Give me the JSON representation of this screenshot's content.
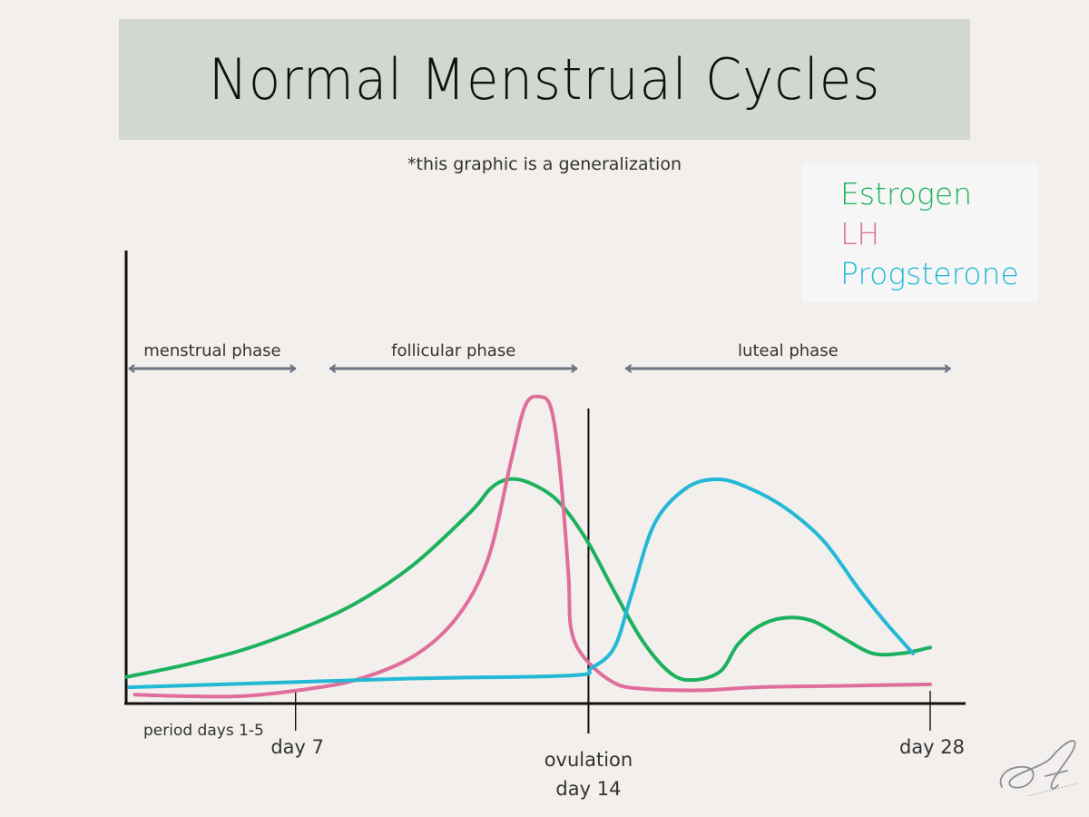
{
  "title": "Normal Menstrual Cycles",
  "subtitle": "*this graphic is a generalization",
  "colors": {
    "estrogen": "#1db15e",
    "lh": "#e06e9c",
    "progesterone": "#22b8d6",
    "arrows": "#6b7480",
    "banner": "#d2d8d1",
    "background": "#f2efec"
  },
  "legend": [
    {
      "label": "Estrogen",
      "color": "#1db15e"
    },
    {
      "label": "LH",
      "color": "#e06e9c"
    },
    {
      "label": "Progsterone",
      "color": "#22b8d6"
    }
  ],
  "chart_data": {
    "type": "line",
    "title": "Normal Menstrual Cycles",
    "xlabel": "",
    "ylabel": "",
    "xlim": [
      0,
      28
    ],
    "ylim": [
      0,
      10
    ],
    "grid": false,
    "legend_position": "top-right",
    "y_ticks": false,
    "phases": [
      {
        "label": "menstrual phase",
        "from": 0,
        "to": 6
      },
      {
        "label": "follicular phase",
        "from": 7,
        "to": 15.8
      },
      {
        "label": "luteal phase",
        "from": 17.3,
        "to": 28.8
      }
    ],
    "tick_marks": [
      {
        "x": 5.9,
        "label": "day 7"
      },
      {
        "x": 28,
        "label": "day 28"
      }
    ],
    "ovulation": {
      "x": 16.1,
      "label_line1": "ovulation",
      "label_line2": "day 14"
    },
    "period_label": "period days 1-5",
    "series": [
      {
        "name": "Estrogen",
        "color": "#1db15e",
        "x": [
          0,
          2,
          4,
          6,
          8,
          10,
          12,
          12.7,
          13.3,
          14,
          15,
          16,
          17,
          18,
          19,
          19.8,
          20.7,
          21.3,
          22,
          22.9,
          23.9,
          25,
          26,
          27,
          28
        ],
        "y": [
          0.9,
          1.3,
          1.8,
          2.5,
          3.4,
          4.7,
          6.5,
          7.3,
          7.6,
          7.5,
          6.9,
          5.6,
          3.8,
          2.1,
          1.0,
          0.8,
          1.1,
          2.0,
          2.6,
          2.9,
          2.8,
          2.2,
          1.7,
          1.7,
          1.9
        ]
      },
      {
        "name": "LH",
        "color": "#e06e9c",
        "x": [
          0.3,
          2,
          4,
          6,
          8,
          10,
          11.5,
          12.6,
          13.4,
          13.9,
          14.4,
          14.8,
          15.1,
          15.4,
          15.5,
          16,
          17,
          18,
          20,
          22,
          25,
          28
        ],
        "y": [
          0.3,
          0.25,
          0.25,
          0.45,
          0.8,
          1.6,
          2.9,
          4.9,
          8.2,
          10.1,
          10.4,
          10.0,
          8.0,
          4.4,
          2.5,
          1.5,
          0.7,
          0.5,
          0.45,
          0.55,
          0.6,
          0.65
        ]
      },
      {
        "name": "Progsterone",
        "color": "#22b8d6",
        "x": [
          0.1,
          5,
          10,
          15.5,
          16.2,
          17,
          17.6,
          18.4,
          19.5,
          20.6,
          21.7,
          23,
          24.3,
          25.5,
          26.4,
          27.4
        ],
        "y": [
          0.55,
          0.7,
          0.85,
          0.95,
          1.2,
          1.9,
          3.7,
          6.1,
          7.3,
          7.6,
          7.3,
          6.6,
          5.5,
          3.9,
          2.8,
          1.7
        ]
      }
    ]
  }
}
